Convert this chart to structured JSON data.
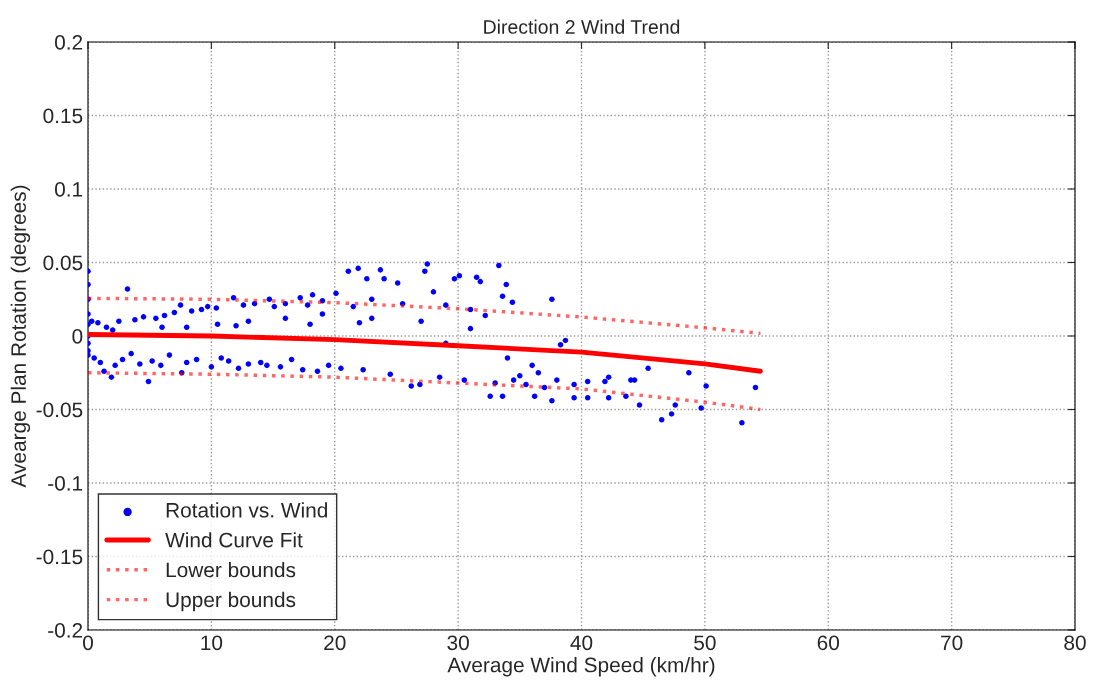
{
  "chart_data": {
    "type": "scatter",
    "title": "Direction 2 Wind Trend",
    "xlabel": "Average Wind Speed (km/hr)",
    "ylabel": "Avearge Plan Rotation (degrees)",
    "xlim": [
      0,
      80
    ],
    "ylim": [
      -0.2,
      0.2
    ],
    "xticks": [
      0,
      10,
      20,
      30,
      40,
      50,
      60,
      70,
      80
    ],
    "yticks": [
      -0.2,
      -0.15,
      -0.1,
      -0.05,
      0,
      0.05,
      0.1,
      0.15,
      0.2
    ],
    "grid": true,
    "legend": "bottom left",
    "series": [
      {
        "name": "Rotation vs. Wind",
        "marker": "circle",
        "color": "#0000ff",
        "x": [
          0,
          0,
          0,
          0,
          0,
          0,
          0,
          0,
          0,
          0.3,
          0.5,
          0.8,
          1.0,
          1.3,
          1.5,
          1.9,
          2.2,
          2.5,
          2.8,
          3.2,
          3.5,
          3.8,
          4.2,
          4.5,
          4.9,
          5.2,
          5.5,
          5.9,
          6.2,
          6.6,
          7.0,
          7.5,
          7.6,
          8.0,
          8.4,
          8.8,
          9.2,
          9.7,
          10.0,
          10.4,
          10.8,
          11.4,
          11.8,
          12.2,
          12.6,
          13.0,
          13.5,
          14.0,
          14.5,
          14.7,
          15.1,
          15.6,
          16.0,
          16.5,
          17.2,
          17.4,
          17.8,
          18.2,
          18.6,
          19.0,
          19.5,
          20.1,
          20.5,
          21.1,
          21.5,
          21.9,
          22.3,
          22.6,
          23.0,
          23.7,
          24.0,
          24.5,
          25.1,
          25.5,
          26.2,
          26.9,
          27.3,
          27.5,
          28.0,
          28.5,
          29.0,
          29.7,
          30.1,
          30.5,
          31.0,
          31.5,
          31.8,
          32.2,
          32.6,
          33.0,
          33.3,
          33.6,
          33.6,
          33.9,
          34.4,
          34.5,
          35.0,
          35.5,
          36.2,
          36.5,
          37.0,
          37.6,
          37.6,
          38.0,
          38.3,
          38.7,
          39.4,
          39.4,
          40.5,
          40.5,
          41.9,
          42.2,
          42.2,
          43.6,
          44.0,
          44.3,
          44.7,
          45.4,
          46.5,
          47.3,
          47.6,
          48.7,
          49.7,
          50.1,
          53.0,
          54.1,
          2.0,
          6.0,
          10.5,
          13.0,
          16.0,
          19.0,
          23.0,
          27.0,
          29.0,
          31.0,
          34.0,
          36.0,
          8.0,
          12.0,
          18.0,
          22.0
        ],
        "values": [
          0.044,
          0.035,
          0.025,
          0.015,
          0.008,
          0.0,
          -0.005,
          -0.01,
          -0.013,
          0.01,
          -0.015,
          0.009,
          -0.018,
          -0.024,
          0.006,
          -0.028,
          -0.02,
          0.01,
          -0.016,
          0.032,
          -0.012,
          0.011,
          -0.019,
          0.013,
          -0.031,
          -0.017,
          0.012,
          -0.02,
          0.014,
          -0.013,
          0.016,
          0.021,
          -0.025,
          -0.018,
          0.017,
          -0.016,
          0.018,
          0.02,
          -0.021,
          0.019,
          -0.015,
          -0.017,
          0.026,
          -0.022,
          0.021,
          -0.019,
          0.022,
          -0.018,
          -0.02,
          0.025,
          0.02,
          -0.021,
          0.022,
          -0.016,
          0.026,
          -0.023,
          0.021,
          0.028,
          -0.024,
          0.024,
          -0.02,
          0.029,
          -0.022,
          0.044,
          0.02,
          0.046,
          -0.023,
          0.039,
          0.025,
          0.045,
          0.039,
          -0.026,
          0.036,
          0.022,
          -0.034,
          -0.033,
          0.044,
          0.049,
          0.03,
          -0.028,
          0.021,
          0.039,
          0.041,
          -0.03,
          0.018,
          0.04,
          0.037,
          0.014,
          -0.041,
          -0.032,
          0.048,
          0.027,
          -0.041,
          0.035,
          0.023,
          -0.03,
          -0.027,
          -0.033,
          -0.041,
          -0.025,
          -0.035,
          0.025,
          -0.044,
          -0.03,
          -0.006,
          -0.003,
          -0.033,
          -0.042,
          -0.031,
          -0.042,
          -0.031,
          -0.028,
          -0.042,
          -0.041,
          -0.03,
          -0.03,
          -0.047,
          -0.022,
          -0.057,
          -0.053,
          -0.047,
          -0.025,
          -0.049,
          -0.034,
          -0.059,
          -0.035,
          0.004,
          0.006,
          0.008,
          0.01,
          0.012,
          0.015,
          0.012,
          0.01,
          -0.005,
          0.005,
          -0.015,
          -0.02,
          0.006,
          0.007,
          0.008,
          0.009
        ]
      },
      {
        "name": "Wind Curve Fit",
        "type": "line",
        "line_style": "solid",
        "color": "#ff0000",
        "x": [
          0,
          10,
          20,
          30,
          40,
          50,
          54.5
        ],
        "values": [
          0.001,
          0.0,
          -0.0025,
          -0.0066,
          -0.011,
          -0.019,
          -0.024
        ]
      },
      {
        "name": "Lower bounds",
        "type": "line",
        "line_style": "dotted",
        "color": "#ff0000",
        "x": [
          0,
          10,
          20,
          30,
          40,
          50,
          54.5
        ],
        "values": [
          -0.025,
          -0.026,
          -0.028,
          -0.032,
          -0.036,
          -0.045,
          -0.05
        ]
      },
      {
        "name": "Upper bounds",
        "type": "line",
        "line_style": "dotted",
        "color": "#ff0000",
        "x": [
          0,
          10,
          20,
          30,
          40,
          50,
          54.5
        ],
        "values": [
          0.0256,
          0.025,
          0.0227,
          0.0186,
          0.0129,
          0.0056,
          0.0018
        ]
      }
    ]
  }
}
